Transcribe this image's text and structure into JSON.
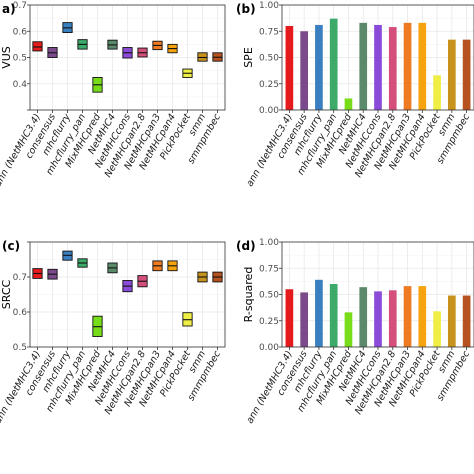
{
  "categories": [
    "ann (NetMHC3.4)",
    "consensus",
    "mhcflurry",
    "mhcflurry_pan",
    "MixMHCpred",
    "NetMHC4",
    "NetMHCcons",
    "NetMHCpan2.8",
    "NetMHCpan3",
    "NetMHCpan4",
    "PickPocket",
    "smm",
    "smmpmbec"
  ],
  "colors": [
    "#e41a1c",
    "#7b4a8b",
    "#3a7fbf",
    "#3cab6a",
    "#77dd1a",
    "#5b8a6b",
    "#8a4bd8",
    "#d4507a",
    "#ee7a22",
    "#f5a30e",
    "#eeee44",
    "#c8931c",
    "#b5521f"
  ],
  "chart_data": [
    {
      "type": "crossbar",
      "label": "a)",
      "ylabel": "VUS",
      "ylim": [
        0.3,
        0.7
      ],
      "yticks": [
        0.3,
        0.4,
        0.5,
        0.6,
        0.7
      ],
      "ytick_labels": [
        "",
        "0.4",
        "0.5",
        "0.6",
        "0.7"
      ],
      "grid": true,
      "values": [
        {
          "low": 0.525,
          "mid": 0.54,
          "high": 0.56
        },
        {
          "low": 0.5,
          "mid": 0.518,
          "high": 0.538
        },
        {
          "low": 0.595,
          "mid": 0.613,
          "high": 0.633
        },
        {
          "low": 0.532,
          "mid": 0.55,
          "high": 0.568
        },
        {
          "low": 0.368,
          "mid": 0.396,
          "high": 0.424
        },
        {
          "low": 0.532,
          "mid": 0.548,
          "high": 0.566
        },
        {
          "low": 0.498,
          "mid": 0.518,
          "high": 0.538
        },
        {
          "low": 0.502,
          "mid": 0.518,
          "high": 0.536
        },
        {
          "low": 0.53,
          "mid": 0.546,
          "high": 0.562
        },
        {
          "low": 0.518,
          "mid": 0.534,
          "high": 0.55
        },
        {
          "low": 0.424,
          "mid": 0.44,
          "high": 0.456
        },
        {
          "low": 0.486,
          "mid": 0.5,
          "high": 0.518
        },
        {
          "low": 0.486,
          "mid": 0.501,
          "high": 0.518
        }
      ]
    },
    {
      "type": "bar",
      "label": "(b)",
      "ylabel": "SPE",
      "ylim": [
        0,
        1.0
      ],
      "yticks": [
        0,
        0.25,
        0.5,
        0.75,
        1.0
      ],
      "ytick_labels": [
        "0.00",
        "0.25",
        "0.50",
        "0.75",
        "1.00"
      ],
      "grid": true,
      "values": [
        0.8,
        0.75,
        0.81,
        0.87,
        0.11,
        0.83,
        0.81,
        0.79,
        0.83,
        0.83,
        0.33,
        0.67,
        0.67
      ]
    },
    {
      "type": "crossbar",
      "label": "(c)",
      "ylabel": "SRCC",
      "ylim": [
        0.5,
        0.8
      ],
      "yticks": [
        0.5,
        0.6,
        0.7,
        0.8
      ],
      "ytick_labels": [
        "0.5",
        "0.6",
        "0.7",
        ""
      ],
      "grid": true,
      "values": [
        {
          "low": 0.696,
          "mid": 0.71,
          "high": 0.724
        },
        {
          "low": 0.694,
          "mid": 0.708,
          "high": 0.722
        },
        {
          "low": 0.748,
          "mid": 0.762,
          "high": 0.774
        },
        {
          "low": 0.728,
          "mid": 0.74,
          "high": 0.752
        },
        {
          "low": 0.53,
          "mid": 0.558,
          "high": 0.588
        },
        {
          "low": 0.712,
          "mid": 0.726,
          "high": 0.74
        },
        {
          "low": 0.658,
          "mid": 0.674,
          "high": 0.69
        },
        {
          "low": 0.672,
          "mid": 0.688,
          "high": 0.704
        },
        {
          "low": 0.718,
          "mid": 0.732,
          "high": 0.746
        },
        {
          "low": 0.718,
          "mid": 0.732,
          "high": 0.746
        },
        {
          "low": 0.56,
          "mid": 0.578,
          "high": 0.598
        },
        {
          "low": 0.686,
          "mid": 0.7,
          "high": 0.714
        },
        {
          "low": 0.686,
          "mid": 0.7,
          "high": 0.714
        }
      ]
    },
    {
      "type": "bar",
      "label": "(d)",
      "ylabel": "R-squared",
      "ylim": [
        0,
        1.0
      ],
      "yticks": [
        0,
        0.25,
        0.5,
        0.75,
        1.0
      ],
      "ytick_labels": [
        "0.00",
        "0.25",
        "0.50",
        "0.75",
        "1.00"
      ],
      "grid": true,
      "values": [
        0.55,
        0.52,
        0.64,
        0.6,
        0.33,
        0.57,
        0.53,
        0.54,
        0.58,
        0.58,
        0.34,
        0.49,
        0.49
      ]
    }
  ]
}
